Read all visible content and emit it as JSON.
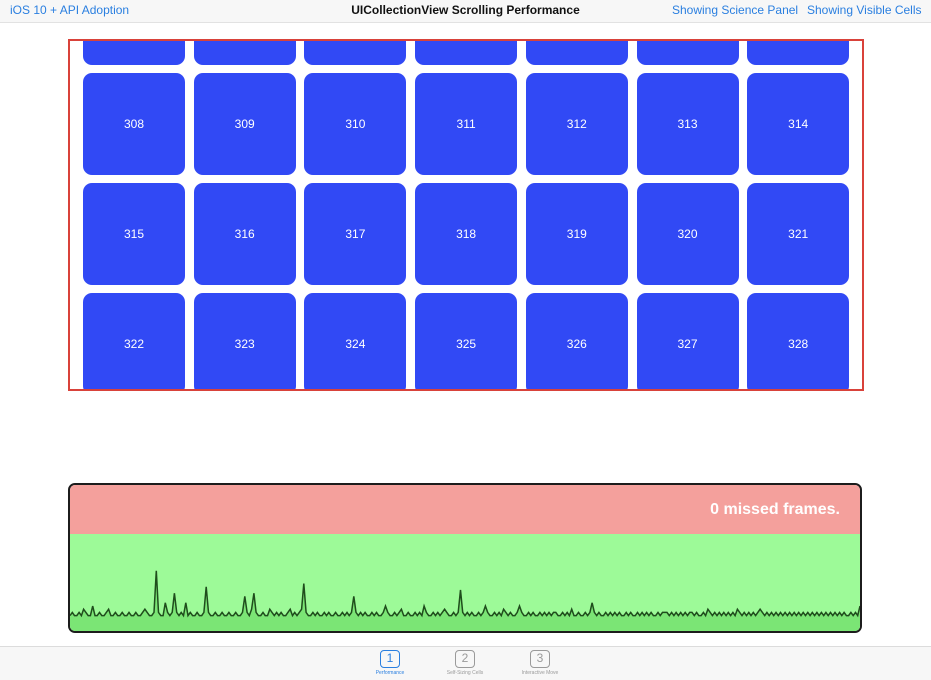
{
  "navbar": {
    "back_label": "iOS 10 + API Adoption",
    "title": "UICollectionView Scrolling Performance",
    "science_label": "Showing Science Panel",
    "visible_cells_label": "Showing Visible Cells"
  },
  "collection": {
    "cell_color": "#3149f5",
    "border_color": "#d9423a",
    "partial_row": [
      "",
      "",
      "",
      "",
      "",
      "",
      ""
    ],
    "rows": [
      [
        "308",
        "309",
        "310",
        "311",
        "312",
        "313",
        "314"
      ],
      [
        "315",
        "316",
        "317",
        "318",
        "319",
        "320",
        "321"
      ],
      [
        "322",
        "323",
        "324",
        "325",
        "326",
        "327",
        "328"
      ]
    ]
  },
  "science_panel": {
    "missed_frames_text": "0 missed frames.",
    "missed_color": "#f4a09c",
    "ok_color": "#9dfa98",
    "frame_samples": [
      2,
      3,
      2,
      2,
      3,
      2,
      4,
      3,
      2,
      2,
      5,
      2,
      2,
      3,
      2,
      2,
      3,
      4,
      2,
      2,
      3,
      2,
      2,
      3,
      2,
      2,
      3,
      2,
      2,
      3,
      2,
      2,
      3,
      4,
      3,
      2,
      2,
      3,
      16,
      3,
      2,
      2,
      6,
      3,
      2,
      3,
      9,
      3,
      2,
      3,
      2,
      6,
      2,
      3,
      2,
      2,
      3,
      2,
      2,
      3,
      11,
      3,
      2,
      2,
      3,
      2,
      2,
      3,
      2,
      2,
      3,
      2,
      2,
      3,
      2,
      2,
      3,
      8,
      3,
      2,
      4,
      9,
      3,
      2,
      2,
      3,
      2,
      2,
      4,
      3,
      2,
      3,
      2,
      3,
      2,
      2,
      3,
      4,
      2,
      3,
      2,
      3,
      4,
      12,
      3,
      2,
      2,
      3,
      2,
      3,
      2,
      2,
      3,
      2,
      3,
      2,
      2,
      3,
      2,
      2,
      3,
      2,
      3,
      2,
      3,
      8,
      3,
      2,
      3,
      2,
      3,
      2,
      2,
      3,
      2,
      3,
      2,
      2,
      3,
      5,
      3,
      2,
      2,
      3,
      2,
      3,
      4,
      2,
      2,
      3,
      2,
      2,
      3,
      2,
      3,
      2,
      5,
      3,
      2,
      2,
      3,
      2,
      3,
      2,
      3,
      4,
      3,
      2,
      2,
      3,
      2,
      3,
      10,
      3,
      2,
      3,
      2,
      3,
      2,
      2,
      3,
      2,
      3,
      5,
      3,
      2,
      2,
      3,
      2,
      3,
      2,
      4,
      3,
      2,
      3,
      2,
      2,
      3,
      5,
      3,
      2,
      2,
      3,
      2,
      3,
      2,
      2,
      3,
      2,
      3,
      2,
      3,
      2,
      3,
      3,
      2,
      2,
      3,
      2,
      3,
      2,
      4,
      2,
      2,
      3,
      2,
      2,
      3,
      2,
      3,
      6,
      3,
      2,
      3,
      2,
      2,
      3,
      2,
      3,
      2,
      3,
      2,
      3,
      2,
      2,
      3,
      2,
      3,
      2,
      2,
      3,
      2,
      3,
      2,
      3,
      2,
      3,
      2,
      2,
      3,
      2,
      3,
      3,
      3,
      2,
      3,
      2,
      3,
      2,
      3,
      2,
      3,
      2,
      3,
      3,
      2,
      3,
      2,
      2,
      3,
      2,
      4,
      3,
      2,
      3,
      2,
      3,
      2,
      3,
      2,
      3,
      2,
      3,
      2,
      4,
      3,
      2,
      3,
      2,
      3,
      2,
      3,
      2,
      3,
      4,
      3,
      2,
      3,
      2,
      3,
      2,
      3,
      2,
      3,
      2,
      3,
      2,
      3,
      2,
      3,
      2,
      3,
      2,
      3,
      2,
      3,
      2,
      3,
      2,
      3,
      2,
      3,
      2,
      3,
      2,
      3,
      2,
      3,
      2,
      3,
      2,
      3,
      2,
      2,
      3,
      2,
      3,
      2,
      5
    ],
    "spike_samples": [
      0,
      0,
      0,
      0,
      0,
      0,
      0,
      0,
      0,
      0,
      0,
      0,
      0,
      0,
      0,
      0,
      0,
      0,
      0,
      0,
      0,
      0,
      0,
      0,
      0,
      0,
      0,
      0,
      0,
      0,
      0,
      0,
      0,
      0,
      0,
      0,
      0,
      0,
      0,
      0,
      0,
      0,
      0,
      0,
      0,
      0,
      0,
      0,
      0,
      0,
      0,
      0,
      0,
      0,
      0,
      0,
      0,
      0,
      0,
      0,
      0,
      0,
      0,
      0,
      0,
      0,
      0,
      0,
      0,
      0,
      0,
      0,
      0,
      0,
      0,
      0,
      0,
      0,
      0,
      0,
      0,
      0,
      0,
      0,
      0,
      0,
      0,
      0,
      0,
      0,
      0,
      0,
      0,
      0,
      0,
      0,
      0,
      0,
      0,
      0,
      0,
      0,
      0,
      0,
      0,
      0,
      0,
      0,
      0,
      0,
      0,
      0,
      0,
      0,
      0,
      0,
      0,
      0,
      0,
      0,
      0,
      0,
      0,
      0,
      0,
      0,
      0,
      0,
      0,
      0,
      0,
      0,
      0,
      0,
      0,
      0,
      0,
      0,
      0,
      0,
      0,
      0,
      0,
      0,
      0,
      0,
      0,
      0,
      0,
      0,
      0,
      0,
      0,
      0,
      0,
      0,
      0,
      0,
      0,
      0,
      0,
      0,
      0,
      0,
      0,
      0,
      0,
      0,
      0,
      0,
      0,
      0,
      0,
      0,
      0,
      0,
      0,
      0,
      0,
      0,
      0,
      0,
      0,
      0,
      0,
      0,
      0,
      0,
      0,
      0,
      0,
      0,
      0,
      0,
      0,
      0,
      0,
      0,
      0,
      0,
      0,
      0,
      0,
      0,
      0,
      0,
      0,
      0,
      0,
      0,
      0,
      0,
      0,
      0,
      0,
      0,
      0,
      0,
      0,
      0,
      0,
      0,
      0,
      0,
      0,
      0,
      0,
      0,
      0,
      0,
      0,
      0,
      0,
      0,
      0,
      0,
      0,
      0,
      0,
      0,
      0,
      0,
      0,
      0,
      0,
      0,
      0,
      0,
      0,
      0,
      0,
      0,
      0,
      0,
      0,
      0,
      0,
      0,
      0,
      0,
      0,
      0,
      0,
      0,
      0,
      0,
      0,
      0,
      0,
      0,
      0,
      0,
      0,
      0,
      0,
      0,
      0,
      0,
      0,
      0,
      0,
      0,
      0,
      0,
      0,
      0,
      0,
      0,
      0,
      0,
      0,
      0,
      0,
      0,
      0,
      0,
      0,
      0,
      0,
      0,
      0,
      0,
      0,
      0,
      0,
      0,
      0,
      0,
      0,
      0,
      0,
      0,
      0,
      0,
      0,
      0,
      0,
      0,
      0,
      0,
      0,
      0,
      0,
      0,
      0,
      0,
      0,
      0,
      0,
      0,
      0,
      0,
      0,
      0,
      0,
      0,
      0,
      0,
      0,
      0,
      0,
      0,
      0,
      0,
      0,
      0,
      0,
      0,
      0,
      0,
      0,
      0,
      0,
      0,
      0,
      0,
      0,
      0,
      0,
      0,
      0,
      0,
      0,
      0,
      0,
      0,
      0,
      0,
      0,
      0,
      0,
      0,
      0,
      0,
      0,
      0,
      0,
      0,
      0,
      0,
      0,
      0
    ]
  },
  "tabbar": {
    "tabs": [
      {
        "number": "1",
        "label": "Performance",
        "active": true
      },
      {
        "number": "2",
        "label": "Self-Sizing Cells",
        "active": false
      },
      {
        "number": "3",
        "label": "Interactive Move",
        "active": false
      }
    ]
  }
}
